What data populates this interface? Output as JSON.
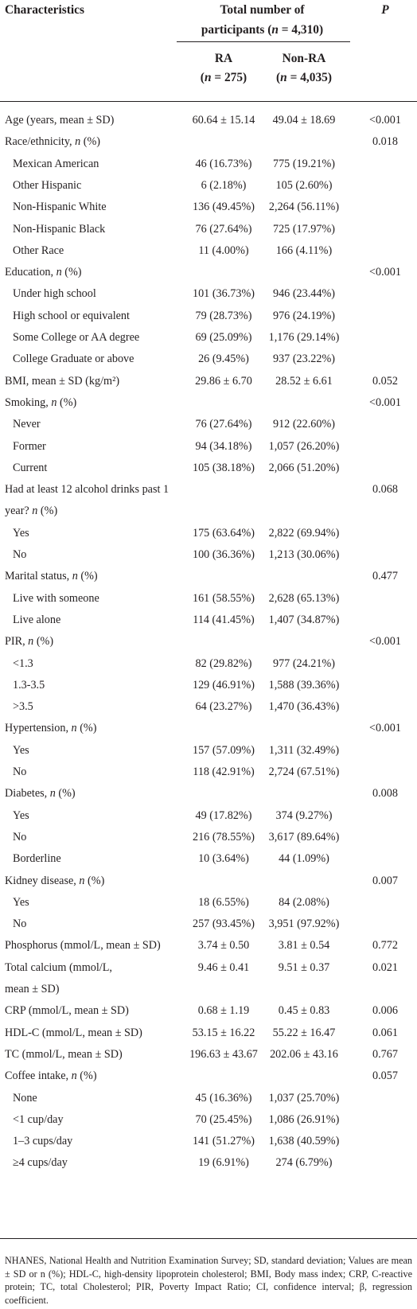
{
  "header": {
    "characteristics": "Characteristics",
    "total_line1": "Total number of",
    "total_line2_pre": "participants (",
    "total_n": "n",
    "total_line2_post": " = 4,310)",
    "p": "P",
    "ra_label": "RA",
    "ra_n_pre": "(",
    "ra_n_var": "n",
    "ra_n_post": " = 275)",
    "nonra_label": "Non-RA",
    "nonra_n_pre": "(",
    "nonra_n_var": "n",
    "nonra_n_post": " = 4,035)"
  },
  "rows": [
    {
      "label": "Age (years, mean ± SD)",
      "ra": "60.64 ± 15.14",
      "nonra": "49.04 ± 18.69",
      "p": "<0.001"
    },
    {
      "label": "Race/ethnicity, ",
      "label_ital": "n",
      "label_post": " (%)",
      "p": "0.018"
    },
    {
      "label": "Mexican American",
      "ra": "46 (16.73%)",
      "nonra": "775 (19.21%)"
    },
    {
      "label": "Other Hispanic",
      "ra": "6 (2.18%)",
      "nonra": "105 (2.60%)"
    },
    {
      "label": "Non-Hispanic White",
      "ra": "136 (49.45%)",
      "nonra": "2,264 (56.11%)"
    },
    {
      "label": "Non-Hispanic Black",
      "ra": "76 (27.64%)",
      "nonra": "725 (17.97%)"
    },
    {
      "label": "Other Race",
      "ra": "11 (4.00%)",
      "nonra": "166 (4.11%)"
    },
    {
      "label": "Education, ",
      "label_ital": "n",
      "label_post": " (%)",
      "p": "<0.001"
    },
    {
      "label": "Under high school",
      "ra": "101 (36.73%)",
      "nonra": "946 (23.44%)"
    },
    {
      "label": "High school or equivalent",
      "ra": "79 (28.73%)",
      "nonra": "976 (24.19%)"
    },
    {
      "label": "Some College or AA degree",
      "ra": "69 (25.09%)",
      "nonra": "1,176 (29.14%)"
    },
    {
      "label": "College Graduate or above",
      "ra": "26 (9.45%)",
      "nonra": "937 (23.22%)"
    },
    {
      "label": "BMI, mean ± SD (kg/m²)",
      "ra": "29.86 ± 6.70",
      "nonra": "28.52 ± 6.61",
      "p": "0.052"
    },
    {
      "label": "Smoking, ",
      "label_ital": "n",
      "label_post": " (%)",
      "p": "<0.001"
    },
    {
      "label": "Never",
      "ra": "76 (27.64%)",
      "nonra": "912 (22.60%)"
    },
    {
      "label": "Former",
      "ra": "94 (34.18%)",
      "nonra": "1,057 (26.20%)"
    },
    {
      "label": "Current",
      "ra": "105 (38.18%)",
      "nonra": "2,066 (51.20%)"
    },
    {
      "label": "Had at least 12 alcohol drinks past 1",
      "p": "0.068"
    },
    {
      "label": "year? ",
      "label_ital": "n",
      "label_post": " (%)"
    },
    {
      "label": "Yes",
      "ra": "175 (63.64%)",
      "nonra": "2,822 (69.94%)"
    },
    {
      "label": "No",
      "ra": "100 (36.36%)",
      "nonra": "1,213 (30.06%)"
    },
    {
      "label": "Marital status, ",
      "label_ital": "n",
      "label_post": " (%)",
      "p": "0.477"
    },
    {
      "label": "Live with someone",
      "ra": "161 (58.55%)",
      "nonra": "2,628 (65.13%)"
    },
    {
      "label": "Live alone",
      "ra": "114 (41.45%)",
      "nonra": "1,407 (34.87%)"
    },
    {
      "label": "PIR, ",
      "label_ital": "n",
      "label_post": " (%)",
      "p": "<0.001"
    },
    {
      "label": "<1.3",
      "ra": "82 (29.82%)",
      "nonra": "977 (24.21%)"
    },
    {
      "label": "1.3-3.5",
      "ra": "129 (46.91%)",
      "nonra": "1,588 (39.36%)"
    },
    {
      "label": ">3.5",
      "ra": "64 (23.27%)",
      "nonra": "1,470 (36.43%)"
    },
    {
      "label": "Hypertension, ",
      "label_ital": "n",
      "label_post": " (%)",
      "p": "<0.001"
    },
    {
      "label": "Yes",
      "ra": "157 (57.09%)",
      "nonra": "1,311 (32.49%)"
    },
    {
      "label": "No",
      "ra": "118 (42.91%)",
      "nonra": "2,724 (67.51%)"
    },
    {
      "label": "Diabetes, ",
      "label_ital": "n",
      "label_post": " (%)",
      "p": "0.008"
    },
    {
      "label": "Yes",
      "ra": "49 (17.82%)",
      "nonra": "374 (9.27%)"
    },
    {
      "label": "No",
      "ra": "216 (78.55%)",
      "nonra": "3,617 (89.64%)"
    },
    {
      "label": "Borderline",
      "ra": "10 (3.64%)",
      "nonra": "44 (1.09%)"
    },
    {
      "label": "Kidney disease, ",
      "label_ital": "n",
      "label_post": " (%)",
      "p": "0.007"
    },
    {
      "label": "Yes",
      "ra": "18 (6.55%)",
      "nonra": "84 (2.08%)"
    },
    {
      "label": "No",
      "ra": "257 (93.45%)",
      "nonra": "3,951 (97.92%)"
    },
    {
      "label": "Phosphorus (mmol/L, mean ± SD)",
      "ra": "3.74 ± 0.50",
      "nonra": "3.81 ± 0.54",
      "p": "0.772"
    },
    {
      "label": "Total calcium (mmol/L,",
      "ra": "9.46 ± 0.41",
      "nonra": "9.51 ± 0.37",
      "p": "0.021"
    },
    {
      "label": "mean ± SD)"
    },
    {
      "label": "CRP (mmol/L, mean ± SD)",
      "ra": "0.68 ± 1.19",
      "nonra": "0.45 ± 0.83",
      "p": "0.006"
    },
    {
      "label": "HDL-C (mmol/L, mean ± SD)",
      "ra": "53.15 ± 16.22",
      "nonra": "55.22 ± 16.47",
      "p": "0.061"
    },
    {
      "label": "TC (mmol/L, mean ± SD)",
      "ra": "196.63 ± 43.67",
      "nonra": "202.06 ± 43.16",
      "p": "0.767"
    },
    {
      "label": "Coffee intake, ",
      "label_ital": "n",
      "label_post": " (%)",
      "p": "0.057"
    },
    {
      "label": "None",
      "ra": "45 (16.36%)",
      "nonra": "1,037 (25.70%)"
    },
    {
      "label": "<1 cup/day",
      "ra": "70 (25.45%)",
      "nonra": "1,086 (26.91%)"
    },
    {
      "label": "1–3 cups/day",
      "ra": "141 (51.27%)",
      "nonra": "1,638 (40.59%)"
    },
    {
      "label": "≥4 cups/day",
      "ra": "19 (6.91%)",
      "nonra": "274 (6.79%)"
    }
  ],
  "footnote": "NHANES, National Health and Nutrition Examination Survey; SD, standard deviation; Values are mean ± SD or n (%); HDL-C, high-density lipoprotein cholesterol; BMI, Body mass index; CRP, C-reactive protein; TC, total Cholesterol; PIR, Poverty Impact Ratio; CI, confidence interval; β, regression coefficient."
}
